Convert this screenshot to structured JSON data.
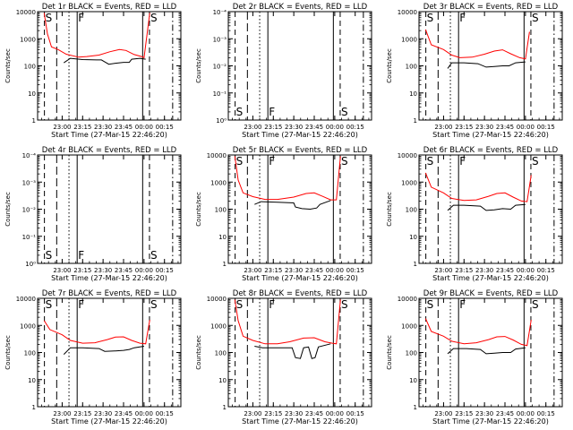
{
  "chart_data": {
    "type": "line",
    "x_tick_labels": [
      "23:00",
      "23:15",
      "23:30",
      "23:45",
      "00:00",
      "00:15"
    ],
    "x_label": "Start Time (27-Mar-15 22:46:20)",
    "y_label": "Counts/sec",
    "y_scale": "log",
    "y_range": [
      1,
      10000
    ],
    "y_tick_labels": [
      "1",
      "10",
      "100",
      "1000",
      "10000"
    ],
    "empty_y_tick_labels": [
      "10⁰",
      "10⁻¹",
      "10⁻²",
      "10⁻³",
      "10⁻⁴"
    ],
    "series_colors": {
      "events": "#000000",
      "lld": "#ff0000"
    },
    "legend_text": "BLACK = Events, RED = LLD",
    "vertical_markers": [
      {
        "label": "S",
        "style": "dashed",
        "time": "22:47"
      },
      {
        "label": "",
        "style": "long-dashed",
        "time": "22:56"
      },
      {
        "label": "",
        "style": "dotted",
        "time": "23:05"
      },
      {
        "label": "F",
        "style": "solid",
        "time": "23:11"
      },
      {
        "label": "",
        "style": "solid",
        "time": "23:59"
      },
      {
        "label": "S",
        "style": "dashed",
        "time": "00:04"
      },
      {
        "label": "",
        "style": "dash-dot",
        "time": "00:21"
      }
    ],
    "panels": [
      {
        "id": "1r",
        "title": "Det 1r BLACK = Events, RED = LLD",
        "empty": false,
        "lld": [
          [
            22.78,
            9000
          ],
          [
            22.82,
            1500
          ],
          [
            22.87,
            500
          ],
          [
            22.95,
            400
          ],
          [
            23.05,
            270
          ],
          [
            23.2,
            210
          ],
          [
            23.3,
            220
          ],
          [
            23.45,
            250
          ],
          [
            23.58,
            330
          ],
          [
            23.7,
            400
          ],
          [
            23.78,
            370
          ],
          [
            23.88,
            260
          ],
          [
            23.97,
            220
          ],
          [
            24.0,
            200
          ],
          [
            24.07,
            9000
          ]
        ],
        "events": [
          [
            23.02,
            130
          ],
          [
            23.1,
            190
          ],
          [
            23.25,
            170
          ],
          [
            23.42,
            165
          ],
          [
            23.48,
            165
          ],
          [
            23.52,
            140
          ],
          [
            23.57,
            115
          ],
          [
            23.65,
            125
          ],
          [
            23.75,
            135
          ],
          [
            23.82,
            135
          ],
          [
            23.85,
            175
          ],
          [
            23.95,
            190
          ],
          [
            24.02,
            175
          ]
        ]
      },
      {
        "id": "2r",
        "title": "Det 2r BLACK = Events, RED = LLD",
        "empty": true,
        "lld": [],
        "events": []
      },
      {
        "id": "3r",
        "title": "Det 3r BLACK = Events, RED = LLD",
        "empty": false,
        "lld": [
          [
            22.78,
            2200
          ],
          [
            22.85,
            600
          ],
          [
            23.0,
            400
          ],
          [
            23.1,
            250
          ],
          [
            23.2,
            200
          ],
          [
            23.35,
            210
          ],
          [
            23.5,
            270
          ],
          [
            23.62,
            350
          ],
          [
            23.72,
            390
          ],
          [
            23.82,
            280
          ],
          [
            23.93,
            200
          ],
          [
            24.0,
            180
          ],
          [
            24.05,
            1800
          ]
        ],
        "events": [
          [
            23.05,
            80
          ],
          [
            23.1,
            130
          ],
          [
            23.25,
            130
          ],
          [
            23.42,
            120
          ],
          [
            23.52,
            90
          ],
          [
            23.62,
            95
          ],
          [
            23.72,
            100
          ],
          [
            23.8,
            100
          ],
          [
            23.88,
            130
          ],
          [
            24.0,
            140
          ]
        ]
      },
      {
        "id": "4r",
        "title": "Det 4r BLACK = Events, RED = LLD",
        "empty": true,
        "lld": [],
        "events": []
      },
      {
        "id": "5r",
        "title": "Det 5r BLACK = Events, RED = LLD",
        "empty": false,
        "lld": [
          [
            22.78,
            9000
          ],
          [
            22.82,
            1200
          ],
          [
            22.88,
            400
          ],
          [
            23.0,
            290
          ],
          [
            23.15,
            230
          ],
          [
            23.3,
            230
          ],
          [
            23.5,
            280
          ],
          [
            23.65,
            380
          ],
          [
            23.75,
            400
          ],
          [
            23.85,
            300
          ],
          [
            23.95,
            220
          ],
          [
            24.02,
            220
          ],
          [
            24.07,
            9000
          ]
        ],
        "events": [
          [
            23.02,
            150
          ],
          [
            23.1,
            190
          ],
          [
            23.3,
            180
          ],
          [
            23.5,
            170
          ],
          [
            23.52,
            120
          ],
          [
            23.6,
            105
          ],
          [
            23.7,
            100
          ],
          [
            23.78,
            110
          ],
          [
            23.82,
            150
          ],
          [
            23.95,
            210
          ]
        ]
      },
      {
        "id": "6r",
        "title": "Det 6r BLACK = Events, RED = LLD",
        "empty": false,
        "lld": [
          [
            22.78,
            2200
          ],
          [
            22.85,
            650
          ],
          [
            23.0,
            400
          ],
          [
            23.1,
            250
          ],
          [
            23.25,
            210
          ],
          [
            23.4,
            220
          ],
          [
            23.55,
            300
          ],
          [
            23.65,
            380
          ],
          [
            23.75,
            400
          ],
          [
            23.85,
            280
          ],
          [
            23.95,
            200
          ],
          [
            24.02,
            190
          ],
          [
            24.07,
            1800
          ]
        ],
        "events": [
          [
            23.05,
            90
          ],
          [
            23.12,
            140
          ],
          [
            23.25,
            140
          ],
          [
            23.45,
            130
          ],
          [
            23.52,
            90
          ],
          [
            23.62,
            95
          ],
          [
            23.72,
            105
          ],
          [
            23.82,
            100
          ],
          [
            23.88,
            140
          ],
          [
            24.0,
            150
          ]
        ]
      },
      {
        "id": "7r",
        "title": "Det 7r BLACK = Events, RED = LLD",
        "empty": false,
        "lld": [
          [
            22.78,
            1500
          ],
          [
            22.85,
            700
          ],
          [
            23.0,
            450
          ],
          [
            23.1,
            280
          ],
          [
            23.25,
            220
          ],
          [
            23.4,
            230
          ],
          [
            23.55,
            300
          ],
          [
            23.65,
            370
          ],
          [
            23.75,
            380
          ],
          [
            23.85,
            280
          ],
          [
            23.95,
            220
          ],
          [
            24.02,
            210
          ],
          [
            24.07,
            1600
          ]
        ],
        "events": [
          [
            23.02,
            85
          ],
          [
            23.1,
            150
          ],
          [
            23.25,
            150
          ],
          [
            23.45,
            140
          ],
          [
            23.52,
            110
          ],
          [
            23.65,
            115
          ],
          [
            23.75,
            120
          ],
          [
            23.82,
            130
          ],
          [
            23.88,
            150
          ],
          [
            24.0,
            170
          ]
        ]
      },
      {
        "id": "8r",
        "title": "Det 8r BLACK = Events, RED = LLD",
        "empty": false,
        "lld": [
          [
            22.78,
            9000
          ],
          [
            22.82,
            1500
          ],
          [
            22.88,
            400
          ],
          [
            23.0,
            280
          ],
          [
            23.15,
            210
          ],
          [
            23.3,
            210
          ],
          [
            23.45,
            250
          ],
          [
            23.62,
            340
          ],
          [
            23.75,
            350
          ],
          [
            23.88,
            250
          ],
          [
            23.97,
            220
          ],
          [
            24.02,
            210
          ],
          [
            24.07,
            9000
          ]
        ],
        "events": [
          [
            23.02,
            170
          ],
          [
            23.12,
            150
          ],
          [
            23.3,
            150
          ],
          [
            23.48,
            150
          ],
          [
            23.52,
            65
          ],
          [
            23.58,
            60
          ],
          [
            23.62,
            150
          ],
          [
            23.68,
            160
          ],
          [
            23.72,
            60
          ],
          [
            23.76,
            65
          ],
          [
            23.8,
            160
          ],
          [
            23.95,
            210
          ]
        ]
      },
      {
        "id": "9r",
        "title": "Det 9r BLACK = Events, RED = LLD",
        "empty": false,
        "lld": [
          [
            22.78,
            1800
          ],
          [
            22.85,
            600
          ],
          [
            23.0,
            400
          ],
          [
            23.1,
            260
          ],
          [
            23.25,
            210
          ],
          [
            23.4,
            230
          ],
          [
            23.55,
            300
          ],
          [
            23.65,
            380
          ],
          [
            23.75,
            390
          ],
          [
            23.85,
            290
          ],
          [
            23.95,
            200
          ],
          [
            24.02,
            180
          ],
          [
            24.07,
            1600
          ]
        ],
        "events": [
          [
            23.05,
            90
          ],
          [
            23.12,
            140
          ],
          [
            23.28,
            140
          ],
          [
            23.45,
            130
          ],
          [
            23.52,
            90
          ],
          [
            23.62,
            95
          ],
          [
            23.72,
            100
          ],
          [
            23.82,
            100
          ],
          [
            23.88,
            135
          ],
          [
            24.0,
            150
          ]
        ]
      }
    ]
  }
}
